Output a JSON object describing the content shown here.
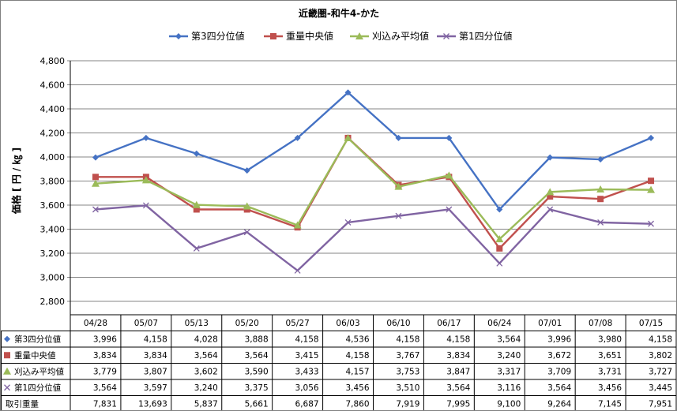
{
  "chart_data": {
    "type": "line",
    "title": "近畿圏-和牛4-かた",
    "ylabel": "価格 [ 円 / ㎏ ]",
    "ylim": [
      2800,
      4800
    ],
    "ytick_step": 200,
    "y_tick_labels": [
      "2,800",
      "3,000",
      "3,200",
      "3,400",
      "3,600",
      "3,800",
      "4,000",
      "4,200",
      "4,400",
      "4,600",
      "4,800"
    ],
    "categories": [
      "04/28",
      "05/07",
      "05/13",
      "05/20",
      "05/27",
      "06/03",
      "06/10",
      "06/17",
      "06/24",
      "07/01",
      "07/08",
      "07/15"
    ],
    "grid": true,
    "legend_position": "top",
    "series": [
      {
        "name": "第3四分位値",
        "color": "#4572C4",
        "marker": "diamond",
        "values": [
          3996,
          4158,
          4028,
          3888,
          4158,
          4536,
          4158,
          4158,
          3564,
          3996,
          3980,
          4158
        ],
        "labels": [
          "3,996",
          "4,158",
          "4,028",
          "3,888",
          "4,158",
          "4,536",
          "4,158",
          "4,158",
          "3,564",
          "3,996",
          "3,980",
          "4,158"
        ]
      },
      {
        "name": "重量中央値",
        "color": "#C0504D",
        "marker": "square",
        "values": [
          3834,
          3834,
          3564,
          3564,
          3415,
          4158,
          3767,
          3834,
          3240,
          3672,
          3651,
          3802
        ],
        "labels": [
          "3,834",
          "3,834",
          "3,564",
          "3,564",
          "3,415",
          "4,158",
          "3,767",
          "3,834",
          "3,240",
          "3,672",
          "3,651",
          "3,802"
        ]
      },
      {
        "name": "刈込み平均値",
        "color": "#9BBB59",
        "marker": "triangle",
        "values": [
          3779,
          3807,
          3602,
          3590,
          3433,
          4157,
          3753,
          3847,
          3317,
          3709,
          3731,
          3727
        ],
        "labels": [
          "3,779",
          "3,807",
          "3,602",
          "3,590",
          "3,433",
          "4,157",
          "3,753",
          "3,847",
          "3,317",
          "3,709",
          "3,731",
          "3,727"
        ]
      },
      {
        "name": "第1四分位値",
        "color": "#8064A2",
        "marker": "x",
        "values": [
          3564,
          3597,
          3240,
          3375,
          3056,
          3456,
          3510,
          3564,
          3116,
          3564,
          3456,
          3445
        ],
        "labels": [
          "3,564",
          "3,597",
          "3,240",
          "3,375",
          "3,056",
          "3,456",
          "3,510",
          "3,564",
          "3,116",
          "3,564",
          "3,456",
          "3,445"
        ]
      }
    ],
    "extra_rows": [
      {
        "name": "取引重量",
        "labels": [
          "7,831",
          "13,693",
          "5,837",
          "5,661",
          "6,687",
          "7,860",
          "7,919",
          "7,995",
          "9,100",
          "9,264",
          "7,145",
          "7,951"
        ]
      }
    ]
  }
}
